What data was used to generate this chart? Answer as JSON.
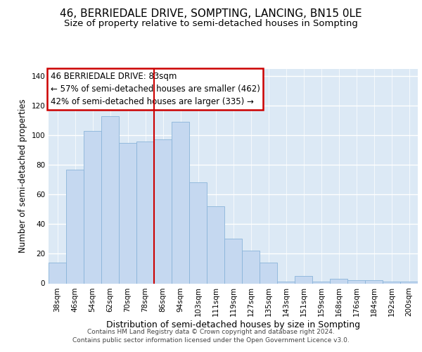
{
  "title": "46, BERRIEDALE DRIVE, SOMPTING, LANCING, BN15 0LE",
  "subtitle": "Size of property relative to semi-detached houses in Sompting",
  "xlabel": "Distribution of semi-detached houses by size in Sompting",
  "ylabel": "Number of semi-detached properties",
  "categories": [
    "38sqm",
    "46sqm",
    "54sqm",
    "62sqm",
    "70sqm",
    "78sqm",
    "86sqm",
    "94sqm",
    "103sqm",
    "111sqm",
    "119sqm",
    "127sqm",
    "135sqm",
    "143sqm",
    "151sqm",
    "159sqm",
    "168sqm",
    "176sqm",
    "184sqm",
    "192sqm",
    "200sqm"
  ],
  "values": [
    14,
    77,
    103,
    113,
    95,
    96,
    97,
    109,
    68,
    52,
    30,
    22,
    14,
    1,
    5,
    1,
    3,
    2,
    2,
    1,
    1
  ],
  "bar_color": "#c5d8f0",
  "bar_edge_color": "#8ab4d9",
  "vline_color": "#cc0000",
  "annotation_title": "46 BERRIEDALE DRIVE: 83sqm",
  "annotation_line1": "← 57% of semi-detached houses are smaller (462)",
  "annotation_line2": "42% of semi-detached houses are larger (335) →",
  "annotation_box_color": "#cc0000",
  "ylim": [
    0,
    145
  ],
  "yticks": [
    0,
    20,
    40,
    60,
    80,
    100,
    120,
    140
  ],
  "footer1": "Contains HM Land Registry data © Crown copyright and database right 2024.",
  "footer2": "Contains public sector information licensed under the Open Government Licence v3.0.",
  "bg_color": "#dce9f5",
  "grid_color": "white",
  "title_fontsize": 11,
  "subtitle_fontsize": 9.5,
  "axis_label_fontsize": 9,
  "annotation_fontsize": 8.5,
  "tick_fontsize": 7.5,
  "ylabel_fontsize": 8.5,
  "footer_fontsize": 6.5
}
